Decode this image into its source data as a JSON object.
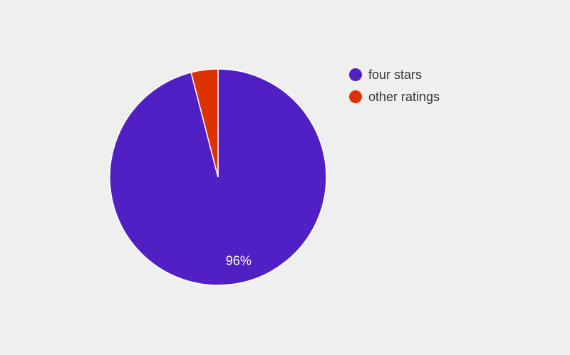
{
  "chart_data": {
    "type": "pie",
    "title": "",
    "slices": [
      {
        "name": "four stars",
        "value": 96,
        "label": "96%",
        "color": "#5020c4"
      },
      {
        "name": "other ratings",
        "value": 4,
        "label": "",
        "color": "#dc3200"
      }
    ],
    "legend": {
      "position": "right"
    }
  }
}
